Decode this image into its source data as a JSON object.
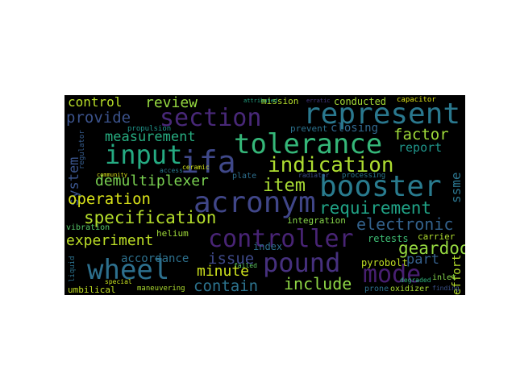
{
  "title": "Word cloud",
  "words": [
    {
      "text": "control",
      "color": "#b8de29"
    },
    {
      "text": "review",
      "color": "#95d840"
    },
    {
      "text": "mission",
      "color": "#b5de2b"
    },
    {
      "text": "conducted",
      "color": "#a5db36"
    },
    {
      "text": "capacitor",
      "color": "#dde318"
    },
    {
      "text": "provide",
      "color": "#3b528b"
    },
    {
      "text": "section",
      "color": "#482878"
    },
    {
      "text": "represent",
      "color": "#2a788e"
    },
    {
      "text": "closing",
      "color": "#31688e"
    },
    {
      "text": "prevent",
      "color": "#2c728e"
    },
    {
      "text": "measurement",
      "color": "#27ad81"
    },
    {
      "text": "tolerance",
      "color": "#35b779"
    },
    {
      "text": "factor",
      "color": "#9fda3a"
    },
    {
      "text": "report",
      "color": "#1f968b"
    },
    {
      "text": "input",
      "color": "#25ab82"
    },
    {
      "text": "ifa",
      "color": "#3f4889"
    },
    {
      "text": "indication",
      "color": "#addc30"
    },
    {
      "text": "system",
      "color": "#3a548c"
    },
    {
      "text": "demultiplexer",
      "color": "#7ad151"
    },
    {
      "text": "item",
      "color": "#a8db34"
    },
    {
      "text": "acronym",
      "color": "#404688"
    },
    {
      "text": "booster",
      "color": "#297b8e"
    },
    {
      "text": "ssme",
      "color": "#2b758e"
    },
    {
      "text": "operation",
      "color": "#d8e219"
    },
    {
      "text": "requirement",
      "color": "#20a386"
    },
    {
      "text": "specification",
      "color": "#b5de2b"
    },
    {
      "text": "electronic",
      "color": "#33628d"
    },
    {
      "text": "experiment",
      "color": "#bddf26"
    },
    {
      "text": "controller",
      "color": "#482475"
    },
    {
      "text": "geardoor",
      "color": "#95d840"
    },
    {
      "text": "retests",
      "color": "#3dbc74"
    },
    {
      "text": "carrier",
      "color": "#b0dd2f"
    },
    {
      "text": "wheel",
      "color": "#2d708e"
    },
    {
      "text": "issue",
      "color": "#3e4989"
    },
    {
      "text": "pound",
      "color": "#46307e"
    },
    {
      "text": "part",
      "color": "#35608d"
    },
    {
      "text": "effort",
      "color": "#b5de2b"
    },
    {
      "text": "minute",
      "color": "#cde11d"
    },
    {
      "text": "mode",
      "color": "#481f71"
    },
    {
      "text": "contain",
      "color": "#2c738e"
    },
    {
      "text": "include",
      "color": "#8ed645"
    },
    {
      "text": "accordance",
      "color": "#2d718e"
    },
    {
      "text": "pyrobolt",
      "color": "#c2df23"
    },
    {
      "text": "index",
      "color": "#2e6e8e"
    },
    {
      "text": "integration",
      "color": "#86d549"
    },
    {
      "text": "helium",
      "color": "#a0da39"
    },
    {
      "text": "umbilical",
      "color": "#c2df23"
    },
    {
      "text": "maneuvering",
      "color": "#addc30"
    },
    {
      "text": "oxidizer",
      "color": "#a8db34"
    },
    {
      "text": "inlet",
      "color": "#84d44b"
    },
    {
      "text": "degraded",
      "color": "#2fb47c"
    },
    {
      "text": "finding",
      "color": "#3b528b"
    },
    {
      "text": "vibration",
      "color": "#56c667"
    },
    {
      "text": "regulator",
      "color": "#365c8d"
    },
    {
      "text": "ceramic",
      "color": "#d0e11c"
    },
    {
      "text": "plate",
      "color": "#2e6f8e"
    },
    {
      "text": "propulsion",
      "color": "#1f958b"
    },
    {
      "text": "liquid",
      "color": "#2c728e"
    },
    {
      "text": "special",
      "color": "#c8e020"
    },
    {
      "text": "failed",
      "color": "#5ec962"
    },
    {
      "text": "processing",
      "color": "#2a788e"
    },
    {
      "text": "radiator",
      "color": "#3d4e8a"
    },
    {
      "text": "prone",
      "color": "#2d708e"
    },
    {
      "text": "access",
      "color": "#2a788e"
    },
    {
      "text": "community",
      "color": "#dde318"
    },
    {
      "text": "attributed",
      "color": "#22a785"
    },
    {
      "text": "erratic",
      "color": "#443983"
    }
  ]
}
